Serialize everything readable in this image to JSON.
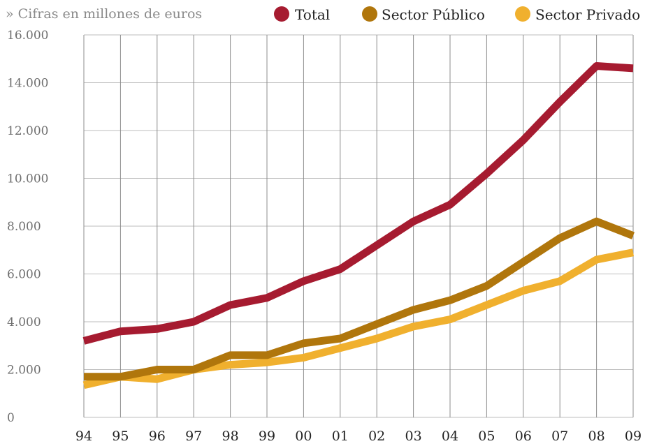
{
  "chart_data": {
    "type": "line",
    "note": "» Cifras en millones  de euros",
    "categories": [
      "94",
      "95",
      "96",
      "97",
      "98",
      "99",
      "00",
      "01",
      "02",
      "03",
      "04",
      "05",
      "06",
      "07",
      "08",
      "09"
    ],
    "series": [
      {
        "name": "Total",
        "color": "#a61b30",
        "values": [
          3200,
          3600,
          3700,
          4000,
          4700,
          5000,
          5700,
          6200,
          7200,
          8200,
          8900,
          10200,
          11600,
          13200,
          14700,
          14600
        ]
      },
      {
        "name": "Sector Público",
        "color": "#b0760c",
        "values": [
          1700,
          1700,
          2000,
          2000,
          2600,
          2600,
          3100,
          3300,
          3900,
          4500,
          4900,
          5500,
          6500,
          7500,
          8200,
          7600
        ]
      },
      {
        "name": "Sector Privado",
        "color": "#f0b02e",
        "values": [
          1350,
          1700,
          1600,
          2000,
          2200,
          2300,
          2500,
          2900,
          3300,
          3800,
          4100,
          4700,
          5300,
          5700,
          6600,
          6900
        ]
      }
    ],
    "y_ticks": [
      "0",
      "2.000",
      "4.000",
      "6.000",
      "8.000",
      "10.000",
      "12.000",
      "14.000",
      "16.000"
    ],
    "ylim": [
      0,
      16000
    ],
    "grid": true,
    "legend_position": "top-right"
  }
}
